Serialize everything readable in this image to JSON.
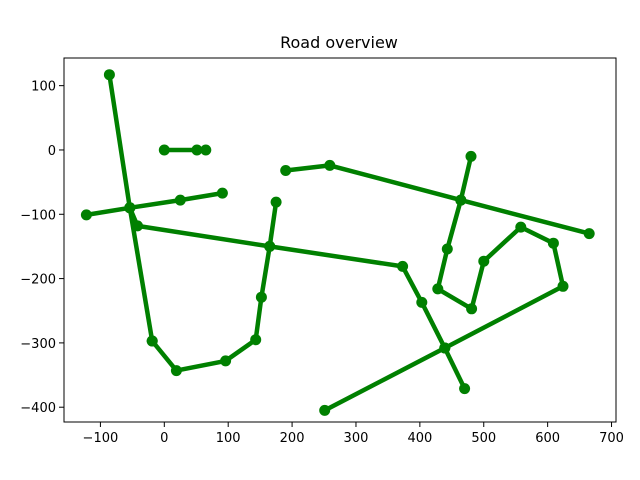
{
  "chart_data": {
    "type": "line",
    "title": "Road overview",
    "xlabel": "",
    "ylabel": "",
    "xlim": [
      -157,
      707
    ],
    "ylim": [
      -423,
      143
    ],
    "xticks": [
      -100,
      0,
      100,
      200,
      300,
      400,
      500,
      600,
      700
    ],
    "xtick_labels": [
      "−100",
      "0",
      "100",
      "200",
      "300",
      "400",
      "500",
      "600",
      "700"
    ],
    "yticks": [
      100,
      0,
      -100,
      -200,
      -300,
      -400
    ],
    "ytick_labels": [
      "100",
      "0",
      "−100",
      "−200",
      "−300",
      "−400"
    ],
    "grid": false,
    "series": [
      {
        "color": "#008000",
        "points": [
          [
            0,
            0
          ],
          [
            51,
            0
          ],
          [
            65,
            0
          ]
        ]
      },
      {
        "color": "#008000",
        "points": [
          [
            -122,
            -101
          ],
          [
            -54,
            -90
          ],
          [
            25,
            -78
          ],
          [
            91,
            -67
          ]
        ]
      },
      {
        "color": "#008000",
        "points": [
          [
            -86,
            117
          ],
          [
            -54,
            -90
          ],
          [
            -42,
            -118
          ],
          [
            165,
            -150
          ],
          [
            373,
            -181
          ],
          [
            403,
            -237
          ],
          [
            439,
            -308
          ],
          [
            470,
            -371
          ]
        ]
      },
      {
        "color": "#008000",
        "points": [
          [
            -19,
            -297
          ],
          [
            19,
            -343
          ],
          [
            96,
            -328
          ],
          [
            143,
            -295
          ],
          [
            152,
            -229
          ],
          [
            165,
            -150
          ],
          [
            175,
            -81
          ]
        ]
      },
      {
        "color": "#008000",
        "points": [
          [
            -54,
            -90
          ],
          [
            -19,
            -297
          ]
        ]
      },
      {
        "color": "#008000",
        "points": [
          [
            190,
            -32
          ],
          [
            259,
            -24
          ],
          [
            464,
            -78
          ],
          [
            665,
            -130
          ]
        ]
      },
      {
        "color": "#008000",
        "points": [
          [
            480,
            -10
          ],
          [
            464,
            -78
          ],
          [
            443,
            -154
          ],
          [
            428,
            -216
          ],
          [
            481,
            -247
          ],
          [
            500,
            -173
          ],
          [
            558,
            -120
          ],
          [
            609,
            -145
          ],
          [
            624,
            -212
          ],
          [
            439,
            -308
          ],
          [
            251,
            -405
          ]
        ]
      }
    ]
  }
}
